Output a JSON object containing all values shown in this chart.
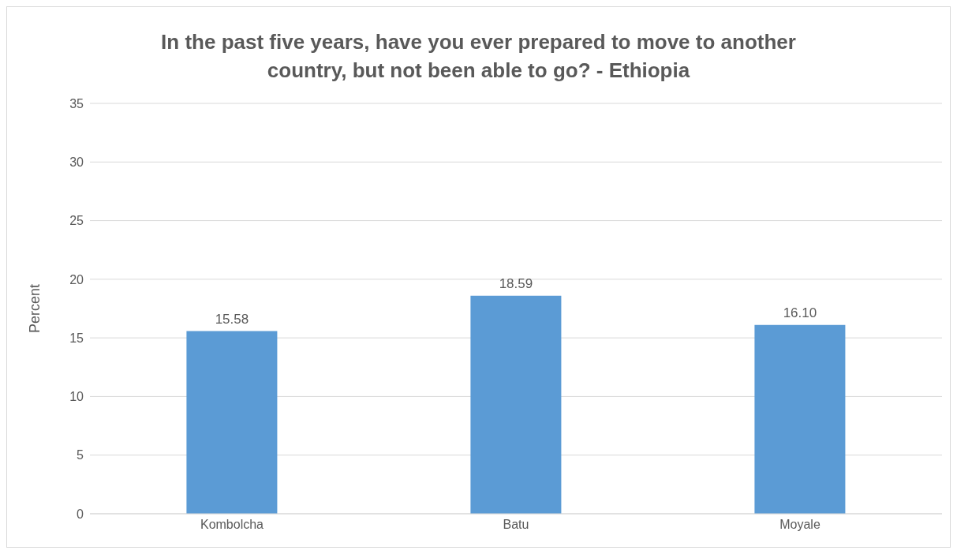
{
  "chart_data": {
    "type": "bar",
    "title": "In the past five years, have you ever prepared to move to another country, but not been able to go? - Ethiopia",
    "ylabel": "Percent",
    "categories": [
      "Kombolcha",
      "Batu",
      "Moyale"
    ],
    "values": [
      15.58,
      18.59,
      16.1
    ],
    "value_labels": [
      "15.58",
      "18.59",
      "16.10"
    ],
    "color": "#5b9bd5",
    "ylim": [
      0,
      35
    ],
    "yticks": [
      0,
      5,
      10,
      15,
      20,
      25,
      30,
      35
    ],
    "grid": "y",
    "legend": false
  }
}
